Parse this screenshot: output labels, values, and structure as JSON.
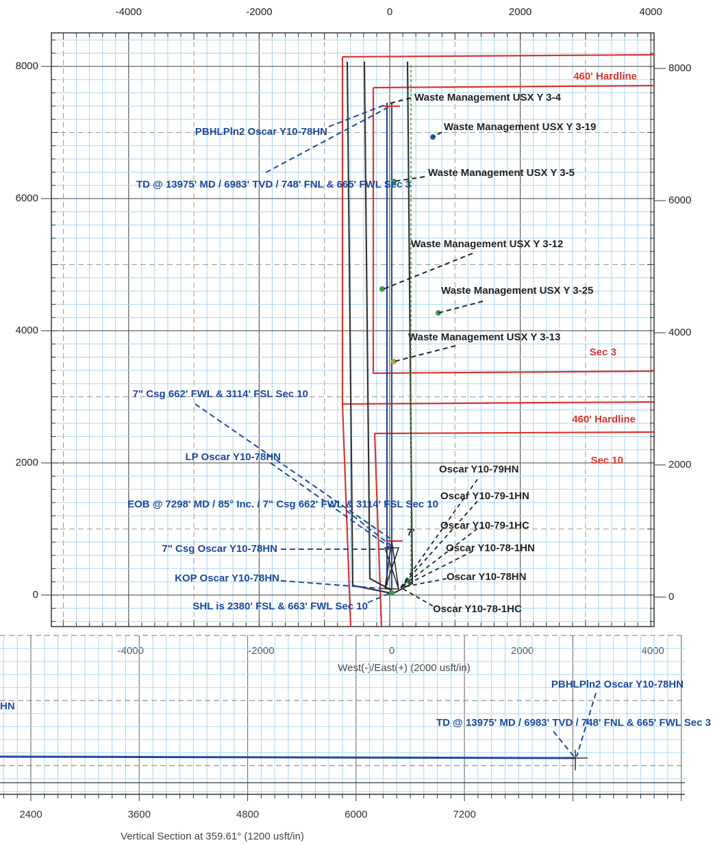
{
  "plan_view": {
    "x_ticks_top": [
      -4000,
      -2000,
      0,
      2000,
      4000
    ],
    "x_ticks_bottom": [
      -4000,
      -2000,
      0,
      2000,
      4000
    ],
    "y_ticks_left": [
      0,
      2000,
      4000,
      6000,
      8000
    ],
    "y_ticks_right": [
      0,
      2000,
      4000,
      6000,
      8000
    ],
    "x_axis_label": "West(-)/East(+) (2000 usft/in)",
    "section_labels": [
      "460' Hardline",
      "Sec 3",
      "460' Hardline",
      "Sec 10"
    ],
    "offset_wells": [
      "Waste Management USX Y 3-4",
      "Waste Management USX Y 3-19",
      "Waste Management USX Y 3-5",
      "Waste Management USX Y 3-12",
      "Waste Management USX Y 3-25",
      "Waste Management USX Y 3-13"
    ],
    "pad_wells": [
      "Oscar Y10-79HN",
      "Oscar Y10-79-1HN",
      "Oscar Y10-79-1HC",
      "Oscar Y10-78-1HN",
      "Oscar Y10-78HN",
      "Oscar Y10-78-1HC"
    ],
    "casing_mark": "7'",
    "well_annotations": [
      "PBHLPln2 Oscar Y10-78HN",
      "TD @ 13975' MD / 6983' TVD / 748' FNL & 665' FWL Sec 3",
      "7\" Csg 662' FWL & 3114' FSL Sec 10",
      "LP Oscar Y10-78HN",
      "EOB @ 7298' MD / 85° Inc. / 7\" Csg 662' FWL & 3114' FSL Sec 10",
      "7\" Csg Oscar Y10-78HN",
      "KOP Oscar Y10-78HN",
      "SHL is  2380' FSL & 663' FWL Sec 10"
    ]
  },
  "section_view": {
    "x_ticks": [
      2400,
      3600,
      4800,
      6000,
      7200
    ],
    "x_axis_label": "Vertical Section at 359.61° (1200 usft/in)",
    "annotations": [
      "HN",
      "PBHLPln2 Oscar Y10-78HN",
      "TD @ 13975' MD / 6983' TVD / 748' FNL & 665' FWL Sec 3"
    ]
  }
}
